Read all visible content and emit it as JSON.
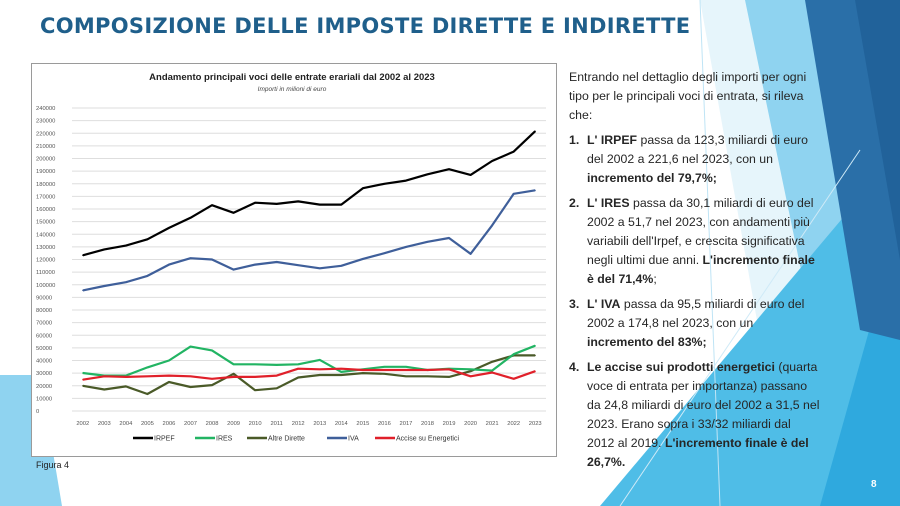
{
  "slide": {
    "title": "COMPOSIZIONE DELLE IMPOSTE DIRETTE E INDIRETTE",
    "figure_caption": "Figura 4",
    "page_number": "8",
    "theme_colors": {
      "title": "#1f5f8b",
      "accent_light": "#8fd3f0",
      "accent_mid": "#2fa9de",
      "accent_dark": "#2a6fa8"
    }
  },
  "text_panel": {
    "intro": "Entrando nel dettaglio degli importi per ogni tipo per le principali voci di entrata, si rileva che:",
    "items": [
      {
        "num": "1.",
        "lead_bold": "L' IRPEF",
        "text": " passa da 123,3 miliardi di euro del 2002 a 221,6 nel 2023, con un ",
        "tail_bold": "incremento del 79,7%;",
        "tail": ""
      },
      {
        "num": "2.",
        "lead_bold": "L' IRES",
        "text": " passa da 30,1 miliardi di euro del 2002 a 51,7 nel 2023, con andamenti più variabili dell'Irpef, e crescita significativa negli ultimi due anni. ",
        "tail_bold": "L'incremento finale è del 71,4%",
        "tail": ";"
      },
      {
        "num": "3.",
        "lead_bold": "L' IVA",
        "text": " passa da 95,5 miliardi di euro del 2002 a 174,8 nel 2023, con un ",
        "tail_bold": "incremento del 83%;",
        "tail": ""
      },
      {
        "num": "4.",
        "lead_bold": "Le accise sui prodotti energetici",
        "text": " (quarta voce di entrata per importanza) passano da 24,8 miliardi di euro del 2002 a 31,5 nel 2023. Erano sopra i 33/32 miliardi dal 2012 al 2019. ",
        "tail_bold": "L'incremento finale è del 26,7%.",
        "tail": ""
      }
    ]
  },
  "chart_data": {
    "type": "line",
    "title": "Andamento principali voci delle entrate erariali dal 2002 al 2023",
    "subtitle": "Importi in milioni di euro",
    "xlabel": "",
    "ylabel": "",
    "x": [
      "2002",
      "2003",
      "2004",
      "2005",
      "2006",
      "2007",
      "2008",
      "2009",
      "2010",
      "2011",
      "2012",
      "2013",
      "2014",
      "2015",
      "2016",
      "2017",
      "2018",
      "2019",
      "2020",
      "2021",
      "2022",
      "2023"
    ],
    "ylim": [
      0,
      240000
    ],
    "yticks": [
      0,
      10000,
      20000,
      30000,
      40000,
      50000,
      60000,
      70000,
      80000,
      90000,
      100000,
      110000,
      120000,
      130000,
      140000,
      150000,
      160000,
      170000,
      180000,
      190000,
      200000,
      210000,
      220000,
      230000,
      240000
    ],
    "grid": true,
    "legend_position": "bottom",
    "series": [
      {
        "name": "IRPEF",
        "color": "#000000",
        "values": [
          123300,
          128000,
          131000,
          136000,
          145000,
          153000,
          163000,
          157000,
          165000,
          164000,
          166000,
          163500,
          163500,
          176500,
          180000,
          182500,
          187500,
          191500,
          187000,
          198000,
          205500,
          221600
        ]
      },
      {
        "name": "IRES",
        "color": "#22b463",
        "values": [
          30100,
          28000,
          28000,
          34500,
          40000,
          51000,
          48000,
          37000,
          37000,
          36500,
          37000,
          40500,
          31000,
          33000,
          35000,
          35000,
          32500,
          33500,
          33000,
          32000,
          45000,
          51700
        ]
      },
      {
        "name": "Altre Dirette",
        "color": "#4a5a28",
        "values": [
          20000,
          17000,
          19500,
          13500,
          23000,
          19000,
          20500,
          29500,
          16500,
          18000,
          26500,
          28500,
          28500,
          30000,
          29500,
          27500,
          27500,
          27000,
          31500,
          39000,
          44000,
          44000
        ]
      },
      {
        "name": "IVA",
        "color": "#3f5f9a",
        "values": [
          95500,
          99000,
          102000,
          107000,
          116000,
          121000,
          120000,
          112000,
          116000,
          118000,
          115500,
          113000,
          115000,
          120500,
          125000,
          130000,
          134000,
          137000,
          124500,
          147000,
          172000,
          174800
        ]
      },
      {
        "name": "Accise su Energetici",
        "color": "#e0202a",
        "values": [
          24800,
          27500,
          27000,
          27500,
          28000,
          27500,
          25500,
          27000,
          27000,
          28000,
          33500,
          33000,
          33500,
          32500,
          32500,
          32500,
          32500,
          33000,
          27500,
          30500,
          25500,
          31500
        ]
      }
    ]
  }
}
